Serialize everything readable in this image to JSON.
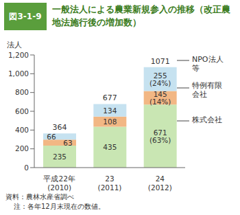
{
  "chart_data": {
    "type": "bar",
    "figure_number": "図3-1-9",
    "title": "一般法人による農業新規参入の推移（改正農地法施行後の増加数）",
    "y_label": "法人",
    "categories": [
      "平成22年 (2010)",
      "23 (2011)",
      "24 (2012)"
    ],
    "stacked": true,
    "data_labels": true,
    "grid": false,
    "series": [
      {
        "name": "株式会社",
        "color": "#c9e6b3",
        "values": [
          235,
          435,
          671
        ],
        "value_labels": [
          "235",
          "435",
          "671 (63%)"
        ]
      },
      {
        "name": "特例有限会社",
        "color": "#f2b784",
        "values": [
          63,
          108,
          145
        ],
        "value_labels": [
          "63",
          "108",
          "145 (14%)"
        ]
      },
      {
        "name": "NPO法人等",
        "color": "#c6e2f0",
        "values": [
          66,
          134,
          255
        ],
        "value_labels": [
          "66",
          "134",
          "255 (24%)"
        ]
      }
    ],
    "totals": [
      364,
      677,
      1071
    ],
    "ylim": [
      0,
      1200
    ],
    "yticks": [
      0,
      200,
      400,
      600,
      800,
      {
        "value": 1000,
        "label": "1,000"
      },
      {
        "value": 1200,
        "label": "1,200"
      }
    ],
    "annotations": [
      "資料：農林水産省調べ",
      "注：各年12月末現在の数値。"
    ]
  }
}
